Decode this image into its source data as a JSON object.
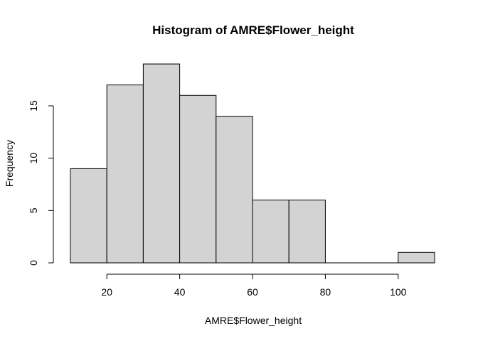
{
  "chart_data": {
    "type": "bar",
    "title": "Histogram of AMRE$Flower_height",
    "xlabel": "AMRE$Flower_height",
    "ylabel": "Frequency",
    "bins": [
      {
        "from": 10,
        "to": 20,
        "count": 9
      },
      {
        "from": 20,
        "to": 30,
        "count": 17
      },
      {
        "from": 30,
        "to": 40,
        "count": 19
      },
      {
        "from": 40,
        "to": 50,
        "count": 16
      },
      {
        "from": 50,
        "to": 60,
        "count": 14
      },
      {
        "from": 60,
        "to": 70,
        "count": 6
      },
      {
        "from": 70,
        "to": 80,
        "count": 6
      },
      {
        "from": 80,
        "to": 90,
        "count": 0
      },
      {
        "from": 90,
        "to": 100,
        "count": 0
      },
      {
        "from": 100,
        "to": 110,
        "count": 1
      }
    ],
    "xlim": [
      10,
      110
    ],
    "ylim": [
      0,
      19
    ],
    "x_ticks": [
      20,
      40,
      60,
      80,
      100
    ],
    "y_ticks": [
      0,
      5,
      10,
      15
    ],
    "grid": false,
    "bar_color": "#d3d3d3",
    "edge_color": "#000000"
  }
}
